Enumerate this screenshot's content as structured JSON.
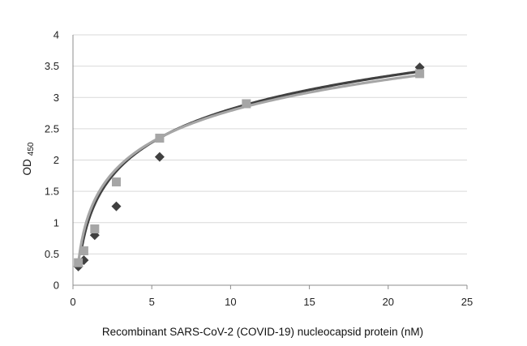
{
  "chart_data": {
    "type": "scatter",
    "title": "",
    "xlabel": "Recombinant SARS-CoV-2 (COVID-19) nucleocapsid protein (nM)",
    "ylabel_main": "OD",
    "ylabel_sub": "450",
    "xlim": [
      0,
      25
    ],
    "ylim": [
      0,
      4
    ],
    "x_ticks": [
      "0",
      "5",
      "10",
      "15",
      "20",
      "25"
    ],
    "y_ticks": [
      "0",
      "0.5",
      "1",
      "1.5",
      "2",
      "2.5",
      "3",
      "3.5",
      "4"
    ],
    "grid": "horizontal",
    "legend": "none",
    "series": [
      {
        "marker": "diamond",
        "color": "#404040",
        "x": [
          0.34,
          0.69,
          1.38,
          2.75,
          5.5,
          22
        ],
        "y": [
          0.3,
          0.4,
          0.8,
          1.26,
          2.05,
          3.48
        ],
        "trendline": {
          "type": "log",
          "a": 0.765,
          "b": 1.05,
          "x_start": 0.55,
          "x_end": 22
        }
      },
      {
        "marker": "square",
        "color": "#a6a6a6",
        "x": [
          0.34,
          0.69,
          1.38,
          2.75,
          5.5,
          11,
          22
        ],
        "y": [
          0.36,
          0.55,
          0.9,
          1.65,
          2.35,
          2.9,
          3.38
        ],
        "trendline": {
          "type": "log",
          "a": 0.72,
          "b": 1.13,
          "x_start": 0.34,
          "x_end": 22
        }
      }
    ]
  }
}
